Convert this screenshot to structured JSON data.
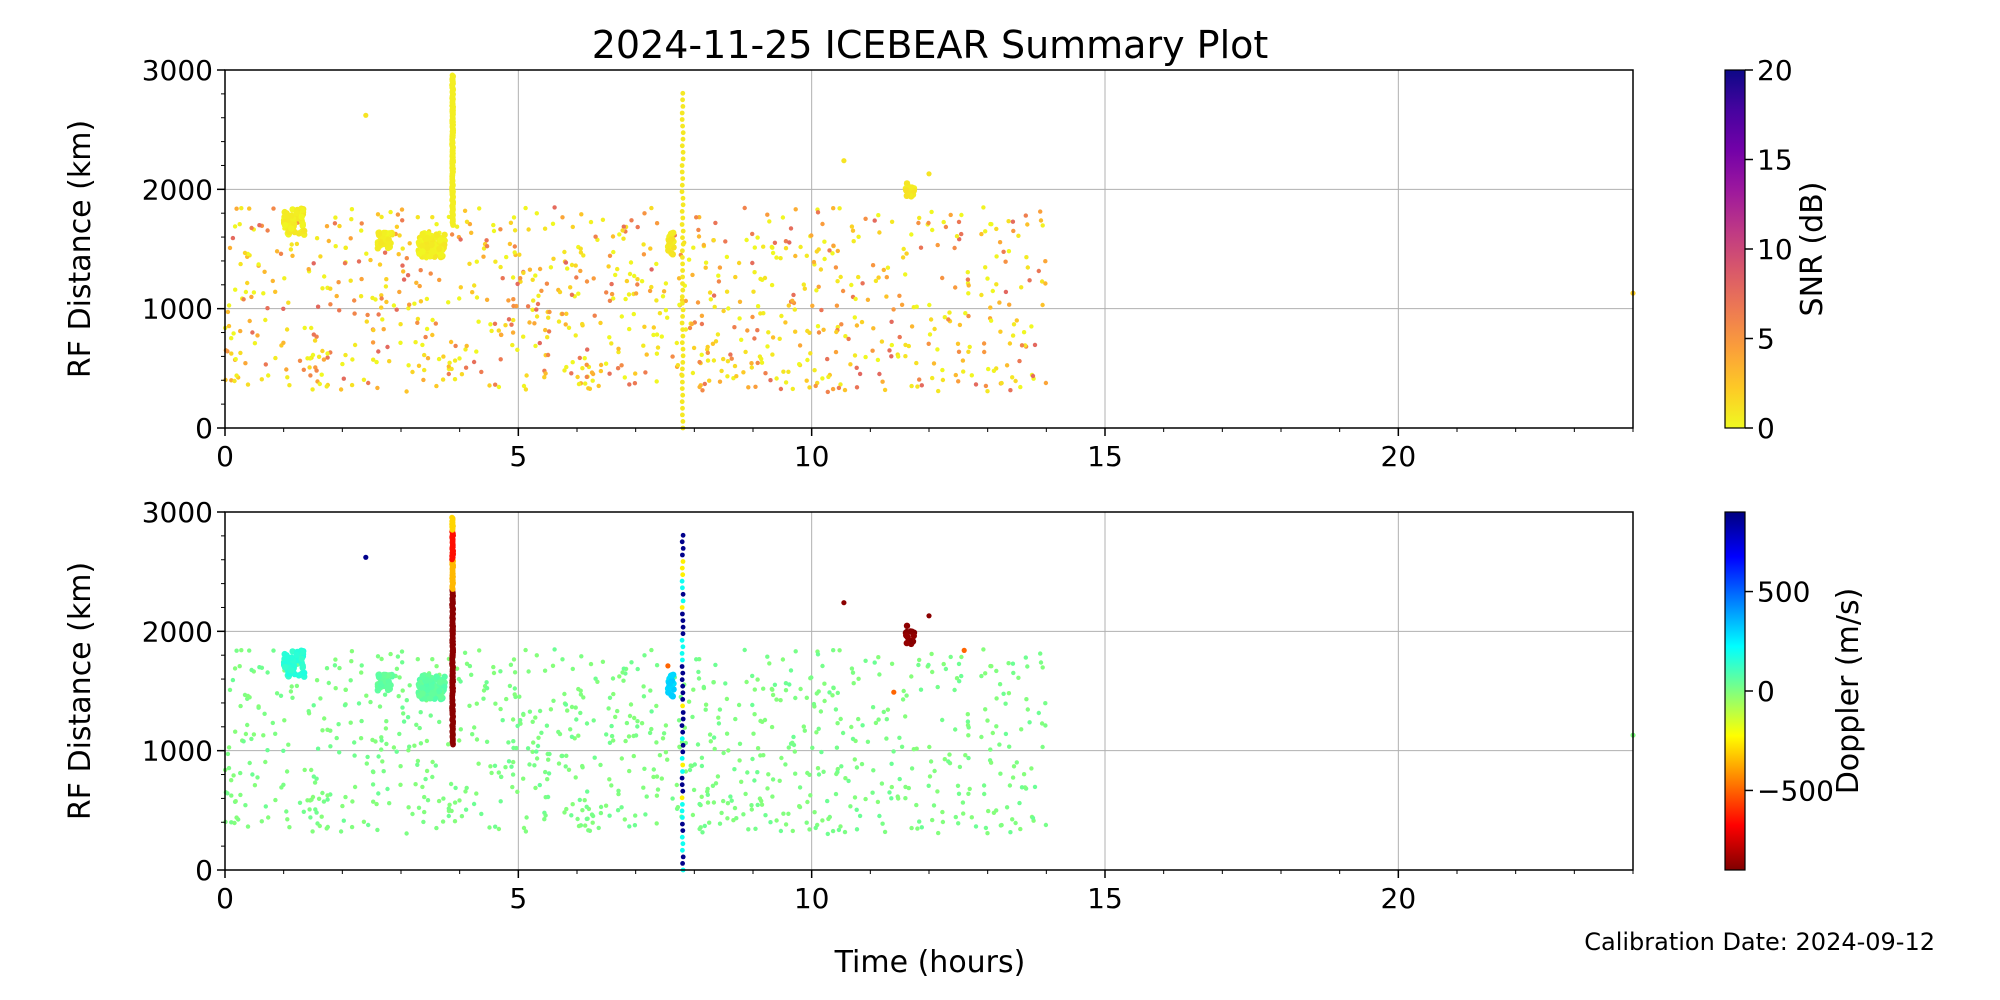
{
  "figure": {
    "title": "2024-11-25 ICEBEAR Summary Plot",
    "xlabel": "Time (hours)",
    "footnote": "Calibration Date: 2024-09-12"
  },
  "chart_data": [
    {
      "type": "scatter",
      "panel": "top",
      "ylabel": "RF Distance (km)",
      "xlim": [
        0,
        24
      ],
      "ylim": [
        0,
        3000
      ],
      "xticks": [
        0,
        5,
        10,
        15,
        20
      ],
      "yticks": [
        0,
        1000,
        2000,
        3000
      ],
      "grid": true,
      "colorbar": {
        "label": "SNR (dB)",
        "range": [
          0,
          20
        ],
        "ticks": [
          0,
          5,
          10,
          15,
          20
        ],
        "colormap": "plasma_r",
        "stops": [
          "#f0f921",
          "#fdca26",
          "#fb9f3a",
          "#ed7953",
          "#d8576b",
          "#bd3786",
          "#9c179e",
          "#7201a8",
          "#46039f",
          "#0d0887"
        ]
      },
      "series": [
        {
          "clusters": [
            {
              "x": [
                1.0,
                1.35
              ],
              "y": [
                1620,
                1850
              ],
              "c": 0.5,
              "n": 70
            },
            {
              "x": [
                2.6,
                2.85
              ],
              "y": [
                1500,
                1640
              ],
              "c": 0.5,
              "n": 40
            },
            {
              "x": [
                3.3,
                3.75
              ],
              "y": [
                1430,
                1640
              ],
              "c": 0.5,
              "n": 90
            },
            {
              "x": [
                7.55,
                7.65
              ],
              "y": [
                1450,
                1650
              ],
              "c": 0.8,
              "n": 20
            },
            {
              "x": [
                11.6,
                11.75
              ],
              "y": [
                1930,
                2060
              ],
              "c": 0.8,
              "n": 15
            }
          ],
          "vlines": [
            {
              "x": 3.88,
              "y": [
                1700,
                2960
              ],
              "c": 0.5
            },
            {
              "x": 7.8,
              "y": [
                0,
                2850
              ],
              "c": 0.8,
              "sparse": true
            }
          ],
          "scatter_region": {
            "x": [
              0.0,
              14.0
            ],
            "y": [
              300,
              1850
            ],
            "c": [
              0,
              8
            ],
            "n": 900
          },
          "isolated": [
            {
              "x": 2.4,
              "y": 2620,
              "c": 1.0
            },
            {
              "x": 10.55,
              "y": 2240,
              "c": 1.0
            },
            {
              "x": 12.0,
              "y": 2130,
              "c": 1.0
            },
            {
              "x": 24.0,
              "y": 1130,
              "c": 2.0
            }
          ]
        }
      ]
    },
    {
      "type": "scatter",
      "panel": "bottom",
      "ylabel": "RF Distance (km)",
      "xlim": [
        0,
        24
      ],
      "ylim": [
        0,
        3000
      ],
      "xticks": [
        0,
        5,
        10,
        15,
        20
      ],
      "yticks": [
        0,
        1000,
        2000,
        3000
      ],
      "grid": true,
      "colorbar": {
        "label": "Doppler (m/s)",
        "range": [
          -900,
          900
        ],
        "ticks": [
          -500,
          0,
          500
        ],
        "ticklabels": [
          "−500",
          "0",
          "500"
        ],
        "colormap": "jet_r",
        "stops": [
          "#800000",
          "#ff0000",
          "#ff8000",
          "#ffff00",
          "#80ff80",
          "#00ffff",
          "#0080ff",
          "#0000ff",
          "#000080"
        ]
      },
      "series": [
        {
          "clusters": [
            {
              "x": [
                1.0,
                1.35
              ],
              "y": [
                1620,
                1850
              ],
              "c": 150,
              "n": 70
            },
            {
              "x": [
                2.6,
                2.85
              ],
              "y": [
                1500,
                1640
              ],
              "c": 50,
              "n": 40
            },
            {
              "x": [
                3.3,
                3.75
              ],
              "y": [
                1430,
                1640
              ],
              "c": 60,
              "n": 90
            },
            {
              "x": [
                7.55,
                7.65
              ],
              "y": [
                1450,
                1650
              ],
              "c": 300,
              "n": 20
            },
            {
              "x": [
                11.6,
                11.75
              ],
              "y": [
                1880,
                2060
              ],
              "c": -880,
              "n": 15
            }
          ],
          "vlines": [
            {
              "x": 3.88,
              "y": [
                1050,
                2960
              ],
              "c_segments": [
                {
                  "y": [
                    1050,
                    2350
                  ],
                  "c": -880
                },
                {
                  "y": [
                    2350,
                    2600
                  ],
                  "c": -350
                },
                {
                  "y": [
                    2600,
                    2850
                  ],
                  "c": -650
                },
                {
                  "y": [
                    2850,
                    2960
                  ],
                  "c": -300
                }
              ]
            },
            {
              "x": 7.8,
              "y": [
                0,
                2850
              ],
              "c": 600,
              "sparse": true
            }
          ],
          "scatter_region": {
            "x": [
              0.0,
              14.0
            ],
            "y": [
              300,
              1850
            ],
            "c": [
              -10,
              40
            ],
            "n": 900
          },
          "isolated": [
            {
              "x": 2.4,
              "y": 2620,
              "c": 880
            },
            {
              "x": 10.55,
              "y": 2240,
              "c": -880
            },
            {
              "x": 12.0,
              "y": 2130,
              "c": -880
            },
            {
              "x": 12.6,
              "y": 1840,
              "c": -500
            },
            {
              "x": 11.4,
              "y": 1490,
              "c": -500
            },
            {
              "x": 7.55,
              "y": 1710,
              "c": -500
            },
            {
              "x": 24.0,
              "y": 1130,
              "c": 0
            }
          ]
        }
      ]
    }
  ]
}
